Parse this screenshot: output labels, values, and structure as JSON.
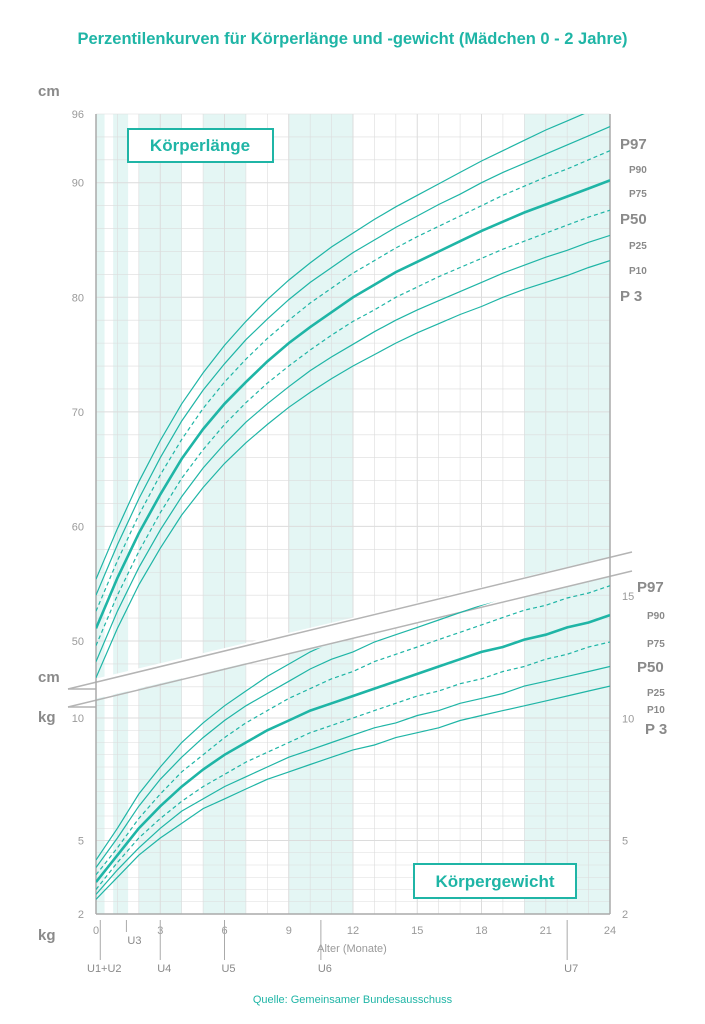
{
  "title": "Perzentilenkurven für Körperlänge und -gewicht (Mädchen 0 - 2 Jahre)",
  "source": "Quelle: Gemeinsamer Bundesausschuss",
  "colors": {
    "accent": "#1fb5a6",
    "band": "#e4f6f4",
    "grid": "#dcdcdc",
    "axis": "#aaaaaa",
    "text": "#8a8a8a"
  },
  "chart_data": [
    {
      "name": "Körperlänge",
      "type": "line",
      "box_label": "Körperlänge",
      "unit_top": "cm",
      "unit_bottom": "cm",
      "x": [
        0,
        1,
        2,
        3,
        4,
        5,
        6,
        7,
        8,
        9,
        10,
        11,
        12,
        13,
        14,
        15,
        16,
        17,
        18,
        19,
        20,
        21,
        22,
        23,
        24
      ],
      "ylim": [
        44,
        96
      ],
      "yticks": [
        50,
        60,
        70,
        80,
        90,
        96
      ],
      "series": [
        {
          "name": "P97",
          "style": "solid",
          "values": [
            55.4,
            59.8,
            63.9,
            67.5,
            70.7,
            73.4,
            75.8,
            77.9,
            79.8,
            81.5,
            83.0,
            84.4,
            85.6,
            86.8,
            87.9,
            88.9,
            89.9,
            90.9,
            91.9,
            92.8,
            93.7,
            94.6,
            95.4,
            96.2,
            97.0
          ]
        },
        {
          "name": "P90",
          "style": "solid",
          "values": [
            54.0,
            58.4,
            62.4,
            66.0,
            69.2,
            71.9,
            74.2,
            76.3,
            78.1,
            79.8,
            81.3,
            82.6,
            83.9,
            85.0,
            86.1,
            87.1,
            88.1,
            89.0,
            90.0,
            90.9,
            91.7,
            92.5,
            93.3,
            94.1,
            94.9
          ]
        },
        {
          "name": "P75",
          "style": "dashed",
          "values": [
            52.6,
            57.0,
            61.0,
            64.5,
            67.6,
            70.3,
            72.6,
            74.6,
            76.4,
            78.0,
            79.5,
            80.8,
            82.1,
            83.2,
            84.3,
            85.3,
            86.2,
            87.1,
            88.0,
            88.9,
            89.7,
            90.5,
            91.2,
            92.0,
            92.8
          ]
        },
        {
          "name": "P50",
          "style": "bold",
          "values": [
            51.1,
            55.5,
            59.4,
            62.8,
            65.9,
            68.5,
            70.7,
            72.6,
            74.4,
            76.0,
            77.4,
            78.7,
            80.0,
            81.1,
            82.2,
            83.1,
            84.0,
            84.9,
            85.8,
            86.6,
            87.4,
            88.1,
            88.8,
            89.5,
            90.2
          ]
        },
        {
          "name": "P25",
          "style": "dashed",
          "values": [
            49.6,
            54.0,
            57.8,
            61.2,
            64.2,
            66.7,
            68.9,
            70.8,
            72.5,
            74.0,
            75.4,
            76.7,
            77.9,
            78.9,
            80.0,
            80.9,
            81.8,
            82.6,
            83.4,
            84.2,
            84.9,
            85.6,
            86.3,
            87.0,
            87.6
          ]
        },
        {
          "name": "P10",
          "style": "solid",
          "values": [
            48.2,
            52.6,
            56.4,
            59.7,
            62.6,
            65.1,
            67.2,
            69.1,
            70.7,
            72.2,
            73.6,
            74.8,
            75.9,
            77.0,
            78.0,
            78.9,
            79.7,
            80.5,
            81.3,
            82.1,
            82.8,
            83.5,
            84.1,
            84.8,
            85.4
          ]
        },
        {
          "name": "P 3",
          "style": "solid",
          "values": [
            46.8,
            51.1,
            54.9,
            58.1,
            61.0,
            63.4,
            65.5,
            67.3,
            68.9,
            70.4,
            71.7,
            72.9,
            74.0,
            75.0,
            76.0,
            76.9,
            77.7,
            78.5,
            79.2,
            80.0,
            80.7,
            81.3,
            81.9,
            82.6,
            83.2
          ]
        }
      ],
      "right_labels": [
        "P97",
        "P90",
        "P75",
        "P50",
        "P25",
        "P10",
        "P 3"
      ]
    },
    {
      "name": "Körpergewicht",
      "type": "line",
      "box_label": "Körpergewicht",
      "unit_top": "kg",
      "unit_bottom": "kg",
      "x": [
        0,
        1,
        2,
        3,
        4,
        5,
        6,
        7,
        8,
        9,
        10,
        11,
        12,
        13,
        14,
        15,
        16,
        17,
        18,
        19,
        20,
        21,
        22,
        23,
        24
      ],
      "ylim": [
        2,
        17
      ],
      "yticks_left": [
        2,
        5,
        10
      ],
      "yticks_right": [
        2,
        5,
        10,
        15
      ],
      "series": [
        {
          "name": "P97",
          "style": "solid",
          "values": [
            4.2,
            5.5,
            6.9,
            8.0,
            9.0,
            9.8,
            10.5,
            11.1,
            11.7,
            12.2,
            12.7,
            13.1,
            13.5,
            13.9,
            14.2,
            14.6,
            14.9,
            15.2,
            15.5,
            15.8,
            16.1,
            16.4,
            16.6,
            16.9,
            17.2
          ]
        },
        {
          "name": "P90",
          "style": "solid",
          "values": [
            3.9,
            5.1,
            6.4,
            7.5,
            8.4,
            9.2,
            9.9,
            10.5,
            11.0,
            11.5,
            12.0,
            12.4,
            12.7,
            13.1,
            13.4,
            13.7,
            14.0,
            14.3,
            14.6,
            14.9,
            15.2,
            15.5,
            15.7,
            16.0,
            16.3
          ]
        },
        {
          "name": "P75",
          "style": "dashed",
          "values": [
            3.6,
            4.7,
            5.9,
            6.9,
            7.8,
            8.5,
            9.2,
            9.8,
            10.3,
            10.8,
            11.2,
            11.6,
            11.9,
            12.3,
            12.6,
            12.9,
            13.2,
            13.5,
            13.8,
            14.1,
            14.4,
            14.6,
            14.9,
            15.1,
            15.4
          ]
        },
        {
          "name": "P50",
          "style": "bold",
          "values": [
            3.3,
            4.4,
            5.5,
            6.4,
            7.2,
            7.9,
            8.5,
            9.0,
            9.5,
            9.9,
            10.3,
            10.6,
            10.9,
            11.2,
            11.5,
            11.8,
            12.1,
            12.4,
            12.7,
            12.9,
            13.2,
            13.4,
            13.7,
            13.9,
            14.2
          ]
        },
        {
          "name": "P25",
          "style": "dashed",
          "values": [
            3.0,
            4.1,
            5.1,
            5.9,
            6.6,
            7.2,
            7.7,
            8.2,
            8.6,
            9.0,
            9.4,
            9.7,
            10.0,
            10.3,
            10.6,
            10.9,
            11.1,
            11.4,
            11.6,
            11.9,
            12.1,
            12.4,
            12.6,
            12.9,
            13.1
          ]
        },
        {
          "name": "P10",
          "style": "solid",
          "values": [
            2.8,
            3.8,
            4.7,
            5.5,
            6.2,
            6.7,
            7.2,
            7.6,
            8.0,
            8.4,
            8.7,
            9.0,
            9.3,
            9.6,
            9.8,
            10.1,
            10.3,
            10.6,
            10.8,
            11.0,
            11.3,
            11.5,
            11.7,
            11.9,
            12.1
          ]
        },
        {
          "name": "P 3",
          "style": "solid",
          "values": [
            2.6,
            3.5,
            4.4,
            5.1,
            5.7,
            6.3,
            6.7,
            7.1,
            7.5,
            7.8,
            8.1,
            8.4,
            8.7,
            8.9,
            9.2,
            9.4,
            9.6,
            9.9,
            10.1,
            10.3,
            10.5,
            10.7,
            10.9,
            11.1,
            11.3
          ]
        }
      ],
      "right_labels": [
        "P97",
        "P90",
        "P75",
        "P50",
        "P25",
        "P10",
        "P 3"
      ]
    }
  ],
  "x_axis": {
    "label": "Alter (Monate)",
    "ticks": [
      0,
      3,
      6,
      9,
      12,
      15,
      18,
      21,
      24
    ],
    "exams": [
      {
        "label": "U1+U2",
        "month": 0.2,
        "row": 2
      },
      {
        "label": "U3",
        "month": 1.0,
        "row": 1
      },
      {
        "label": "U4",
        "month": 3.0,
        "row": 2
      },
      {
        "label": "U5",
        "month": 6.0,
        "row": 2
      },
      {
        "label": "U6",
        "month": 10.5,
        "row": 2
      },
      {
        "label": "U7",
        "month": 22.0,
        "row": 2
      }
    ],
    "bands_months": [
      [
        0,
        0.4
      ],
      [
        0.8,
        1.5
      ],
      [
        2,
        4
      ],
      [
        5,
        7
      ],
      [
        9,
        12
      ],
      [
        20,
        24
      ]
    ]
  }
}
